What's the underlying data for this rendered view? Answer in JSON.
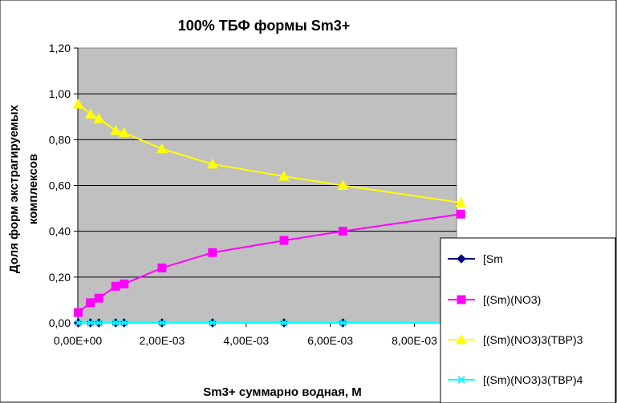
{
  "chart_data": {
    "type": "line",
    "title": "100%  ТБФ  формы Sm3+",
    "xlabel": "Sm3+ суммарно   водная, М",
    "ylabel_lines": [
      "Доля форм экстрагируемых",
      "комплексов"
    ],
    "xlim": [
      0,
      0.009
    ],
    "ylim": [
      0,
      1.2
    ],
    "x_ticks": [
      "0,00E+00",
      "2,00E-03",
      "4,00E-03",
      "6,00E-03",
      "8,00E-03"
    ],
    "y_ticks": [
      "0,00",
      "0,20",
      "0,40",
      "0,60",
      "0,80",
      "1,00",
      "1,20"
    ],
    "x": [
      1e-05,
      0.0003,
      0.0005,
      0.0009,
      0.0011,
      0.002,
      0.0032,
      0.0049,
      0.0063,
      0.0091
    ],
    "grid": "horizontal",
    "plot_background": "#c0c0c0",
    "legend_position": "bottom-right",
    "series": [
      {
        "name": "[Sm",
        "color": "#000080",
        "marker": "diamond",
        "values": [
          0,
          0,
          0,
          0,
          0,
          0,
          0,
          0,
          0,
          0
        ]
      },
      {
        "name": "[(Sm)(NO3)",
        "color": "#ff00ff",
        "marker": "square",
        "values": [
          0.045,
          0.088,
          0.108,
          0.16,
          0.17,
          0.24,
          0.307,
          0.36,
          0.4,
          0.475
        ]
      },
      {
        "name": "[(Sm)(NO3)3(TBP)3",
        "color": "#ffff00",
        "marker": "triangle",
        "values": [
          0.955,
          0.912,
          0.892,
          0.84,
          0.83,
          0.76,
          0.693,
          0.64,
          0.6,
          0.525
        ]
      },
      {
        "name": "[(Sm)(NO3)3(TBP)4",
        "color": "#00ffff",
        "marker": "x",
        "values": [
          0,
          0,
          0,
          0,
          0,
          0,
          0,
          0,
          0,
          0
        ]
      }
    ]
  }
}
